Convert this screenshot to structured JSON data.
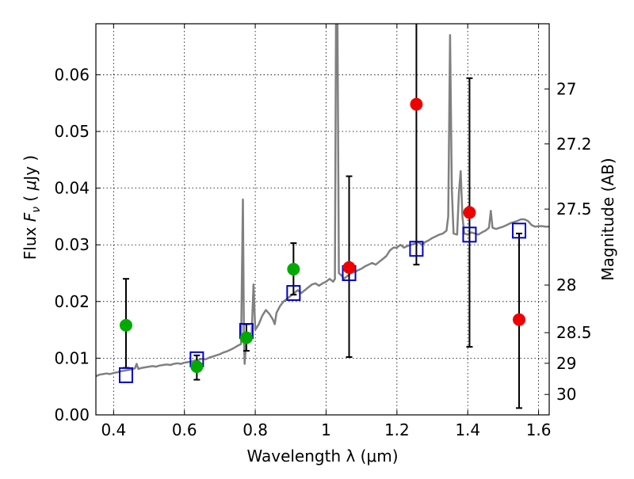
{
  "chart_data": {
    "type": "scatter",
    "xlabel": "Wavelength  λ (μm)",
    "ylabel": "Flux  F_ν  ( μJy )",
    "ylabel_parts": {
      "prefix": "Flux  ",
      "symbol": "F",
      "subscript": "ν",
      "open": "  ( ",
      "mu": "μ",
      "unit": "Jy )"
    },
    "ylabel_right": "Magnitude (AB)",
    "xlim": [
      0.35,
      1.63
    ],
    "ylim": [
      0.0,
      0.069
    ],
    "grid": true,
    "x_ticks": [
      {
        "value": 0.4,
        "label": "0.4"
      },
      {
        "value": 0.6,
        "label": "0.6"
      },
      {
        "value": 0.8,
        "label": "0.8"
      },
      {
        "value": 1.0,
        "label": "1"
      },
      {
        "value": 1.2,
        "label": "1.2"
      },
      {
        "value": 1.4,
        "label": "1.4"
      },
      {
        "value": 1.6,
        "label": "1.6"
      }
    ],
    "y_ticks": [
      {
        "value": 0.0,
        "label": "0.00"
      },
      {
        "value": 0.01,
        "label": "0.01"
      },
      {
        "value": 0.02,
        "label": "0.02"
      },
      {
        "value": 0.03,
        "label": "0.03"
      },
      {
        "value": 0.04,
        "label": "0.04"
      },
      {
        "value": 0.05,
        "label": "0.05"
      },
      {
        "value": 0.06,
        "label": "0.06"
      }
    ],
    "right_ticks": [
      {
        "flux": 0.0575,
        "label": "27"
      },
      {
        "flux": 0.0478,
        "label": "27.2"
      },
      {
        "flux": 0.0363,
        "label": "27.5"
      },
      {
        "flux": 0.0229,
        "label": "28"
      },
      {
        "flux": 0.0145,
        "label": "28.5"
      },
      {
        "flux": 0.0091,
        "label": "29"
      },
      {
        "flux": 0.0036,
        "label": "30"
      }
    ],
    "spectrum": {
      "color": "#808080",
      "points": [
        [
          0.35,
          0.0068
        ],
        [
          0.36,
          0.0071
        ],
        [
          0.37,
          0.0072
        ],
        [
          0.38,
          0.0073
        ],
        [
          0.39,
          0.0072
        ],
        [
          0.4,
          0.0074
        ],
        [
          0.41,
          0.0075
        ],
        [
          0.42,
          0.0077
        ],
        [
          0.43,
          0.0078
        ],
        [
          0.44,
          0.0079
        ],
        [
          0.45,
          0.008
        ],
        [
          0.46,
          0.0082
        ],
        [
          0.465,
          0.009
        ],
        [
          0.47,
          0.0081
        ],
        [
          0.48,
          0.0083
        ],
        [
          0.49,
          0.0084
        ],
        [
          0.5,
          0.0085
        ],
        [
          0.51,
          0.0086
        ],
        [
          0.52,
          0.0085
        ],
        [
          0.53,
          0.0087
        ],
        [
          0.54,
          0.0088
        ],
        [
          0.55,
          0.0089
        ],
        [
          0.56,
          0.0088
        ],
        [
          0.57,
          0.009
        ],
        [
          0.58,
          0.0091
        ],
        [
          0.59,
          0.009
        ],
        [
          0.6,
          0.0092
        ],
        [
          0.61,
          0.0093
        ],
        [
          0.62,
          0.0094
        ],
        [
          0.63,
          0.0096
        ],
        [
          0.64,
          0.0097
        ],
        [
          0.65,
          0.0099
        ],
        [
          0.66,
          0.0098
        ],
        [
          0.67,
          0.0101
        ],
        [
          0.68,
          0.0103
        ],
        [
          0.69,
          0.0105
        ],
        [
          0.7,
          0.0107
        ],
        [
          0.71,
          0.011
        ],
        [
          0.72,
          0.0112
        ],
        [
          0.73,
          0.0115
        ],
        [
          0.74,
          0.0118
        ],
        [
          0.75,
          0.0122
        ],
        [
          0.76,
          0.0125
        ],
        [
          0.765,
          0.038
        ],
        [
          0.768,
          0.014
        ],
        [
          0.77,
          0.009
        ],
        [
          0.775,
          0.0135
        ],
        [
          0.78,
          0.014
        ],
        [
          0.79,
          0.0145
        ],
        [
          0.795,
          0.023
        ],
        [
          0.8,
          0.015
        ],
        [
          0.81,
          0.016
        ],
        [
          0.82,
          0.0175
        ],
        [
          0.83,
          0.0185
        ],
        [
          0.84,
          0.0178
        ],
        [
          0.85,
          0.0168
        ],
        [
          0.855,
          0.016
        ],
        [
          0.86,
          0.018
        ],
        [
          0.87,
          0.0192
        ],
        [
          0.88,
          0.02
        ],
        [
          0.89,
          0.0205
        ],
        [
          0.9,
          0.021
        ],
        [
          0.91,
          0.0215
        ],
        [
          0.92,
          0.022
        ],
        [
          0.93,
          0.0215
        ],
        [
          0.94,
          0.022
        ],
        [
          0.95,
          0.0225
        ],
        [
          0.96,
          0.023
        ],
        [
          0.97,
          0.0232
        ],
        [
          0.98,
          0.0228
        ],
        [
          0.99,
          0.0232
        ],
        [
          1.0,
          0.0235
        ],
        [
          1.01,
          0.024
        ],
        [
          1.02,
          0.0235
        ],
        [
          1.025,
          0.024
        ],
        [
          1.028,
          0.07
        ],
        [
          1.032,
          0.07
        ],
        [
          1.036,
          0.025
        ],
        [
          1.045,
          0.0245
        ],
        [
          1.05,
          0.024
        ],
        [
          1.06,
          0.0245
        ],
        [
          1.07,
          0.025
        ],
        [
          1.08,
          0.0252
        ],
        [
          1.09,
          0.0255
        ],
        [
          1.1,
          0.0258
        ],
        [
          1.11,
          0.0262
        ],
        [
          1.12,
          0.0265
        ],
        [
          1.13,
          0.0268
        ],
        [
          1.14,
          0.0265
        ],
        [
          1.15,
          0.027
        ],
        [
          1.16,
          0.0275
        ],
        [
          1.17,
          0.028
        ],
        [
          1.18,
          0.029
        ],
        [
          1.19,
          0.0295
        ],
        [
          1.2,
          0.0295
        ],
        [
          1.21,
          0.03
        ],
        [
          1.22,
          0.0295
        ],
        [
          1.23,
          0.0298
        ],
        [
          1.24,
          0.03
        ],
        [
          1.25,
          0.0302
        ],
        [
          1.26,
          0.0305
        ],
        [
          1.27,
          0.03
        ],
        [
          1.28,
          0.0305
        ],
        [
          1.29,
          0.0308
        ],
        [
          1.3,
          0.0312
        ],
        [
          1.31,
          0.0315
        ],
        [
          1.32,
          0.0318
        ],
        [
          1.33,
          0.032
        ],
        [
          1.34,
          0.0325
        ],
        [
          1.345,
          0.035
        ],
        [
          1.35,
          0.067
        ],
        [
          1.355,
          0.04
        ],
        [
          1.36,
          0.032
        ],
        [
          1.37,
          0.0318
        ],
        [
          1.375,
          0.039
        ],
        [
          1.38,
          0.043
        ],
        [
          1.385,
          0.035
        ],
        [
          1.39,
          0.032
        ],
        [
          1.4,
          0.0318
        ],
        [
          1.41,
          0.0322
        ],
        [
          1.42,
          0.032
        ],
        [
          1.43,
          0.0318
        ],
        [
          1.44,
          0.0322
        ],
        [
          1.45,
          0.0325
        ],
        [
          1.46,
          0.033
        ],
        [
          1.465,
          0.036
        ],
        [
          1.47,
          0.033
        ],
        [
          1.48,
          0.0328
        ],
        [
          1.49,
          0.033
        ],
        [
          1.5,
          0.0332
        ],
        [
          1.51,
          0.0335
        ],
        [
          1.52,
          0.0338
        ],
        [
          1.53,
          0.034
        ],
        [
          1.54,
          0.0342
        ],
        [
          1.55,
          0.0345
        ],
        [
          1.56,
          0.0345
        ],
        [
          1.57,
          0.0342
        ],
        [
          1.58,
          0.0335
        ],
        [
          1.59,
          0.0332
        ],
        [
          1.6,
          0.0333
        ],
        [
          1.61,
          0.0333
        ],
        [
          1.62,
          0.0332
        ],
        [
          1.63,
          0.0332
        ]
      ]
    },
    "model_points": {
      "color": "#0000cc",
      "marker": "open-square",
      "points": [
        {
          "x": 0.435,
          "y": 0.007
        },
        {
          "x": 0.635,
          "y": 0.0098
        },
        {
          "x": 0.775,
          "y": 0.0148
        },
        {
          "x": 0.908,
          "y": 0.0215
        },
        {
          "x": 1.065,
          "y": 0.025
        },
        {
          "x": 1.255,
          "y": 0.0293
        },
        {
          "x": 1.405,
          "y": 0.0318
        },
        {
          "x": 1.545,
          "y": 0.0325
        }
      ]
    },
    "detections": {
      "color": "#00aa00",
      "marker": "filled-circle",
      "points": [
        {
          "x": 0.435,
          "y": 0.0158,
          "err_low": 0.0083,
          "err_high": 0.024
        },
        {
          "x": 0.635,
          "y": 0.0085,
          "err_low": 0.0062,
          "err_high": 0.0105
        },
        {
          "x": 0.775,
          "y": 0.0136,
          "err_low": 0.0113,
          "err_high": 0.016
        },
        {
          "x": 0.908,
          "y": 0.0257,
          "err_low": 0.0212,
          "err_high": 0.0303
        }
      ]
    },
    "upper_limits": {
      "color": "#ee0000",
      "marker": "filled-circle",
      "points": [
        {
          "x": 1.065,
          "y": 0.026,
          "err_low": 0.0102,
          "err_high": 0.0421
        },
        {
          "x": 1.255,
          "y": 0.0548,
          "err_low": 0.0265,
          "err_high": 0.07
        },
        {
          "x": 1.405,
          "y": 0.0357,
          "err_low": 0.012,
          "err_high": 0.0594
        },
        {
          "x": 1.545,
          "y": 0.0168,
          "err_low": 0.0012,
          "err_high": 0.032
        }
      ]
    }
  }
}
